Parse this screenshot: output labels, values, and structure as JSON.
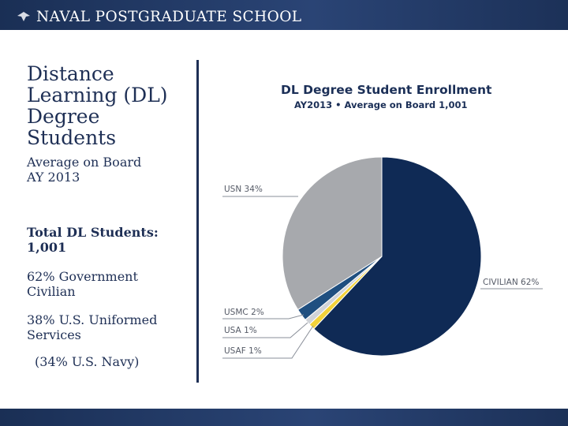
{
  "header": {
    "school_name": "NAVAL POSTGRADUATE SCHOOL",
    "bar_color": "#1e3360"
  },
  "left": {
    "heading_lines": [
      "Distance",
      "Learning (DL)",
      "Degree",
      "Students"
    ],
    "subheading_lines": [
      "Average on Board",
      "AY 2013"
    ],
    "total_lines": [
      "Total DL Students:",
      "1,001"
    ],
    "government_lines": [
      "62% Government",
      "Civilian"
    ],
    "uniformed_lines": [
      "38% U.S. Uniformed",
      "Services"
    ],
    "navy_line": "(34% U.S. Navy)"
  },
  "chart_data": {
    "type": "pie",
    "title": "DL Degree Student Enrollment",
    "subtitle": "AY2013  •  Average on Board 1,001",
    "slices": [
      {
        "label": "CIVILIAN 62%",
        "value": 62,
        "color": "#0f2a55"
      },
      {
        "label": "USAF 1%",
        "value": 1,
        "color": "#f2d23a"
      },
      {
        "label": "USA 1%",
        "value": 1,
        "color": "#d0d3d8"
      },
      {
        "label": "USMC 2%",
        "value": 2,
        "color": "#1f4f80"
      },
      {
        "label": "USN 34%",
        "value": 34,
        "color": "#a7a9ad"
      }
    ]
  }
}
